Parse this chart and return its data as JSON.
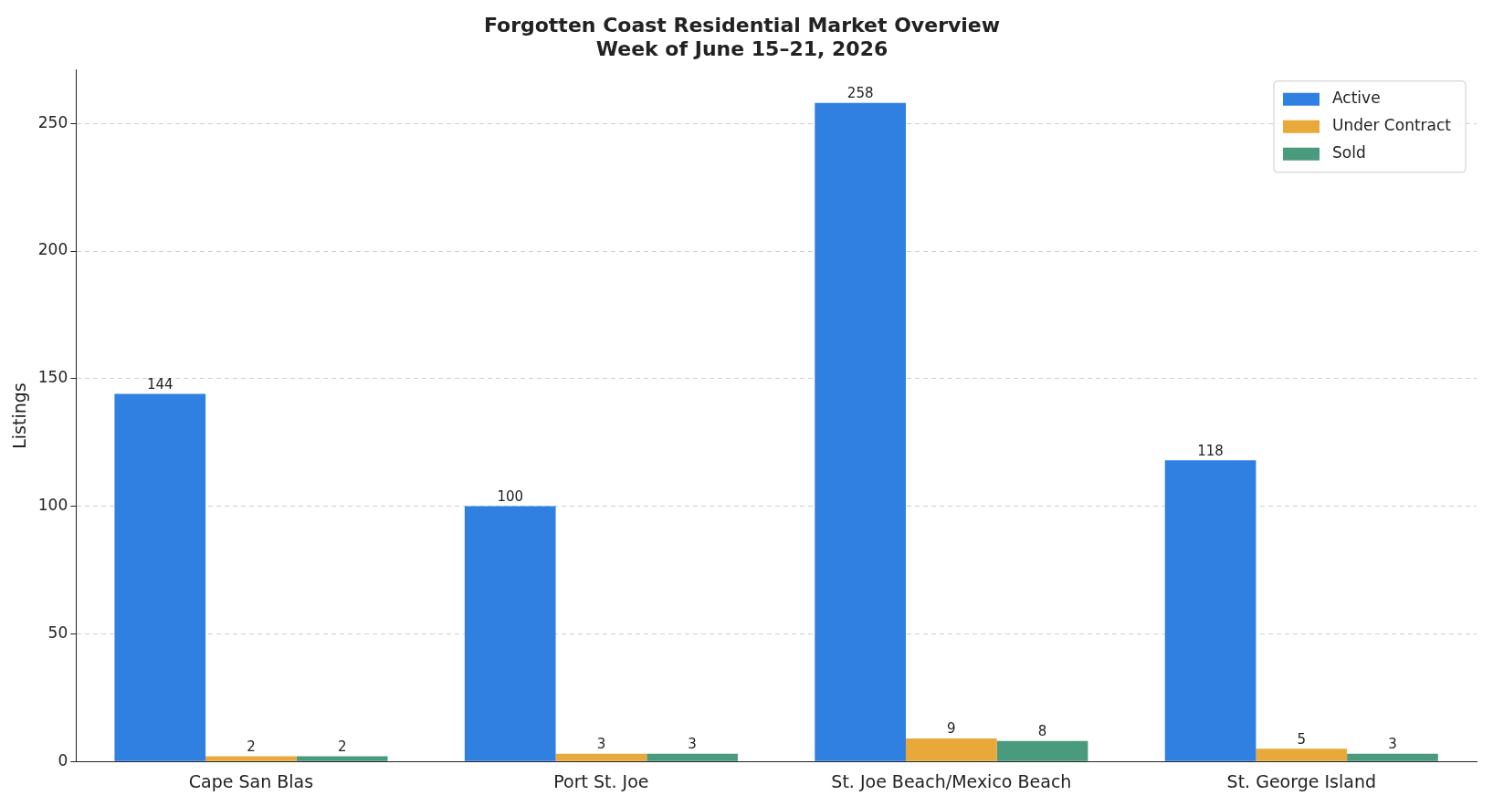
{
  "chart_data": {
    "type": "bar",
    "title": "Forgotten Coast Residential Market Overview",
    "subtitle": "Week of June 15–21, 2026",
    "ylabel": "Listings",
    "categories": [
      "Cape San Blas",
      "Port St. Joe",
      "St. Joe Beach/Mexico Beach",
      "St. George Island"
    ],
    "series": [
      {
        "name": "Active",
        "color": "#2f80e1",
        "values": [
          144,
          100,
          258,
          118
        ]
      },
      {
        "name": "Under Contract",
        "color": "#e9a83a",
        "values": [
          2,
          3,
          9,
          5
        ]
      },
      {
        "name": "Sold",
        "color": "#4a9b7e",
        "values": [
          2,
          3,
          8,
          3
        ]
      }
    ],
    "ylim": [
      0,
      270.9
    ],
    "yticks": [
      0,
      50,
      100,
      150,
      200,
      250
    ],
    "grid": "y",
    "legend": "top right",
    "data_labels": true
  }
}
